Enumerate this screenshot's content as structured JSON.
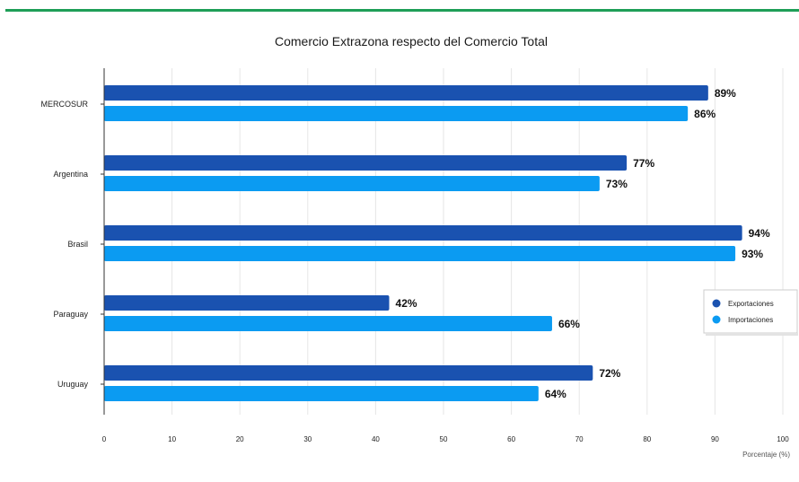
{
  "chart_data": {
    "type": "bar",
    "orientation": "horizontal",
    "title": "Comercio Extrazona respecto del Comercio Total",
    "categories": [
      "MERCOSUR",
      "Argentina",
      "Brasil",
      "Paraguay",
      "Uruguay"
    ],
    "series": [
      {
        "name": "Exportaciones",
        "values": [
          89,
          77,
          94,
          42,
          72
        ],
        "color": "#1a52b0"
      },
      {
        "name": "Importaciones",
        "values": [
          86,
          73,
          93,
          66,
          64
        ],
        "color": "#0b9bf2"
      }
    ],
    "value_suffix": "%",
    "xlabel": "Porcentaje (%)",
    "ylabel": "",
    "xlim": [
      0,
      100
    ],
    "xticks": [
      0,
      10,
      20,
      30,
      40,
      50,
      60,
      70,
      80,
      90,
      100
    ],
    "grid": true,
    "legend": "right"
  },
  "colors": {
    "accent_border": "#1e9e57",
    "gridline": "#e6e6e6"
  }
}
